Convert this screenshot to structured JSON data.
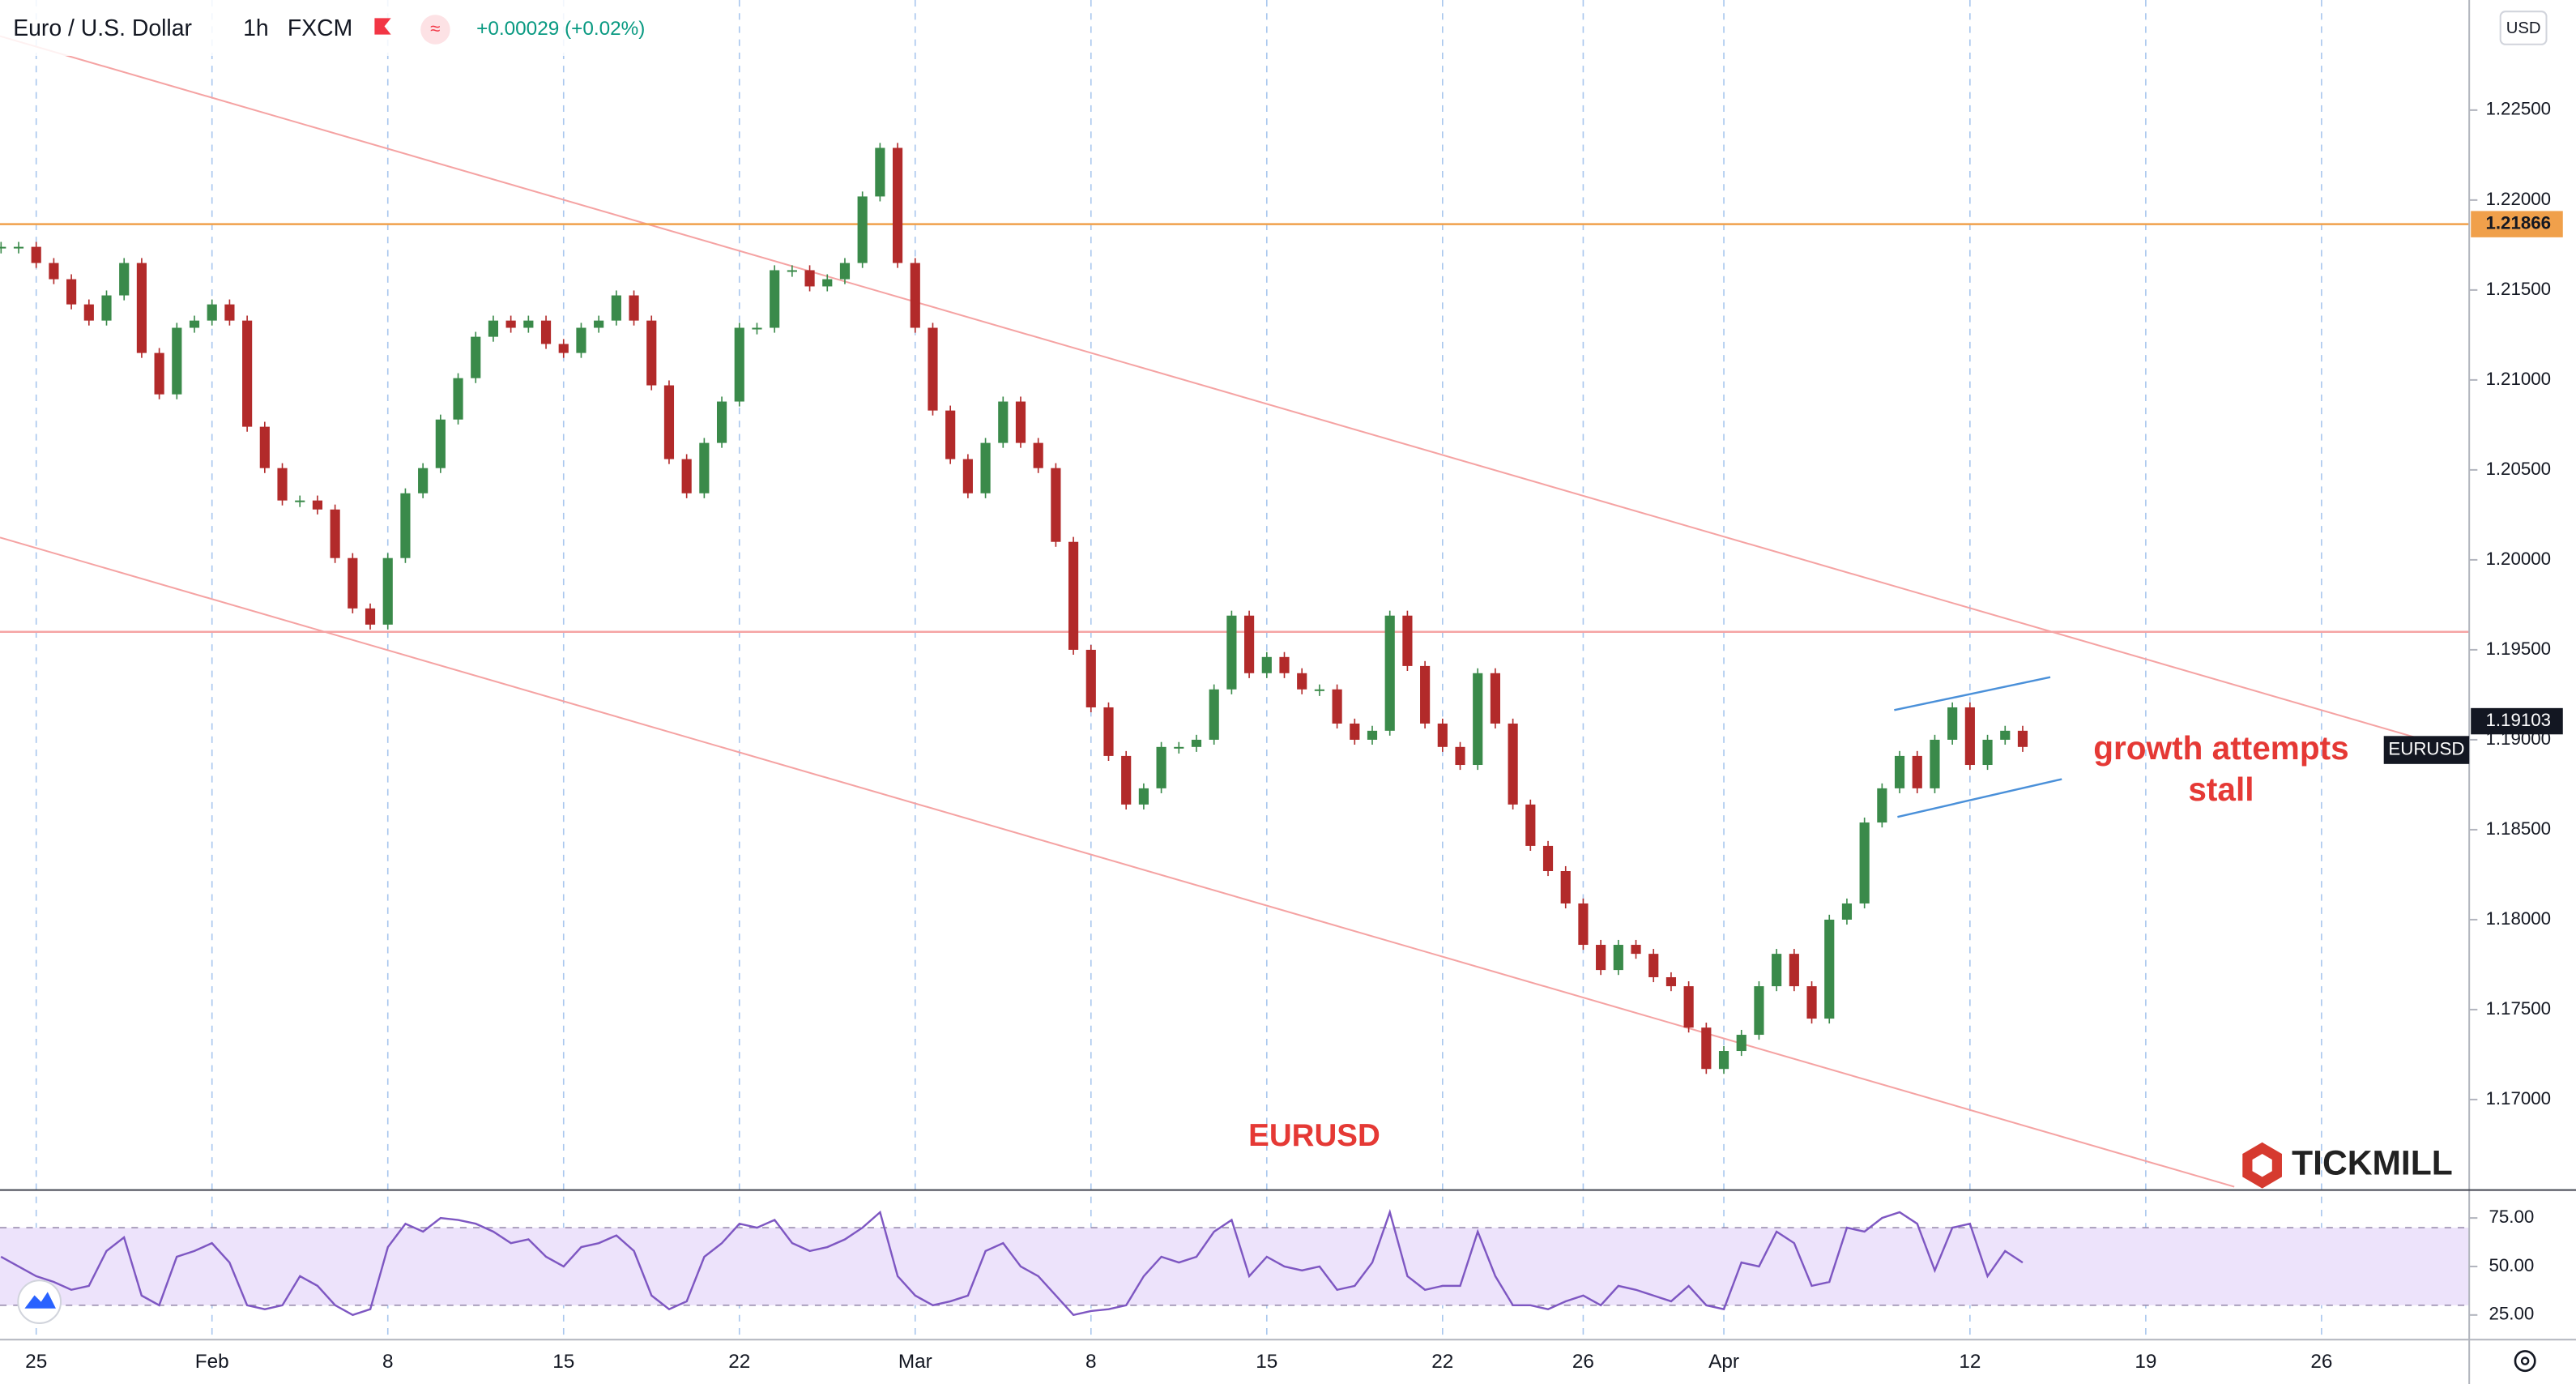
{
  "chart_data": {
    "type": "candlestick",
    "title": "Euro / U.S. Dollar",
    "interval": "1h",
    "source": "FXCM",
    "change": "+0.00029 (+0.02%)",
    "currency": "USD",
    "annotations": [
      "growth attempts stall",
      "EURUSD"
    ],
    "logo": "TICKMILL",
    "up_color": "#3a8a4a",
    "down_color": "#b22a2a",
    "xlim": [
      -1.03,
      69.2
    ],
    "xticks": [
      {
        "value": 0,
        "label": "25"
      },
      {
        "value": 5,
        "label": "Feb"
      },
      {
        "value": 10,
        "label": "8"
      },
      {
        "value": 15,
        "label": "15"
      },
      {
        "value": 20,
        "label": "22"
      },
      {
        "value": 25,
        "label": "Mar"
      },
      {
        "value": 30,
        "label": "8"
      },
      {
        "value": 35,
        "label": "15"
      },
      {
        "value": 40,
        "label": "22"
      },
      {
        "value": 44,
        "label": "26"
      },
      {
        "value": 48,
        "label": "Apr"
      },
      {
        "value": 55,
        "label": "12"
      },
      {
        "value": 60,
        "label": "19"
      },
      {
        "value": 65,
        "label": "26"
      }
    ],
    "ylim": [
      1.16497,
      1.23112
    ],
    "yticks": [
      {
        "value": 1.17,
        "label": "1.17000"
      },
      {
        "value": 1.175,
        "label": "1.17500"
      },
      {
        "value": 1.18,
        "label": "1.18000"
      },
      {
        "value": 1.185,
        "label": "1.18500"
      },
      {
        "value": 1.19,
        "label": "1.19000"
      },
      {
        "value": 1.195,
        "label": "1.19500"
      },
      {
        "value": 1.2,
        "label": "1.20000"
      },
      {
        "value": 1.205,
        "label": "1.20500"
      },
      {
        "value": 1.21,
        "label": "1.21000"
      },
      {
        "value": 1.215,
        "label": "1.21500"
      },
      {
        "value": 1.22,
        "label": "1.22000"
      },
      {
        "value": 1.225,
        "label": "1.22500"
      }
    ],
    "levels": [
      {
        "value": 1.21866,
        "color": "#f0a04b",
        "tagged": true
      },
      {
        "value": 1.196,
        "color": "#f5a3a3"
      }
    ],
    "last_price": 1.19103,
    "x": [
      -1,
      -0.5,
      0,
      0.5,
      1,
      1.5,
      2,
      2.5,
      3,
      3.5,
      4,
      4.5,
      5,
      5.5,
      6,
      6.5,
      7,
      7.5,
      8,
      8.5,
      9,
      9.5,
      10,
      10.5,
      11,
      11.5,
      12,
      12.5,
      13,
      13.5,
      14,
      14.5,
      15,
      15.5,
      16,
      16.5,
      17,
      17.5,
      18,
      18.5,
      19,
      19.5,
      20,
      20.5,
      21,
      21.5,
      22,
      22.5,
      23,
      23.5,
      24,
      24.5,
      25,
      25.5,
      26,
      26.5,
      27,
      27.5,
      28,
      28.5,
      29,
      29.5,
      30,
      30.5,
      31,
      31.5,
      32,
      32.5,
      33,
      33.5,
      34,
      34.5,
      35,
      35.5,
      36,
      36.5,
      37,
      37.5,
      38,
      38.5,
      39,
      39.5,
      40,
      40.5,
      41,
      41.5,
      42,
      42.5,
      43,
      43.5,
      44,
      44.5,
      45,
      45.5,
      46,
      46.5,
      47,
      47.5,
      48,
      48.5,
      49,
      49.5,
      50,
      50.5,
      51,
      51.5,
      52,
      52.5,
      53,
      53.5,
      54,
      54.5,
      55,
      55.5,
      56,
      56.5
    ],
    "series": [
      {
        "name": "EURUSD",
        "values": [
          1.2174,
          1.2174,
          1.2165,
          1.2156,
          1.2142,
          1.2133,
          1.2147,
          1.2165,
          1.2115,
          1.2092,
          1.2129,
          1.2133,
          1.2142,
          1.2133,
          1.2074,
          1.2051,
          1.2033,
          1.2033,
          1.2028,
          1.2001,
          1.1973,
          1.1964,
          1.2001,
          1.2037,
          1.2051,
          1.2078,
          1.2101,
          1.2124,
          1.2133,
          1.2129,
          1.2133,
          1.212,
          1.2115,
          1.2129,
          1.2133,
          1.2147,
          1.2133,
          1.2097,
          1.2056,
          1.2037,
          1.2065,
          1.2088,
          1.2129,
          1.2129,
          1.2161,
          1.2161,
          1.2152,
          1.2156,
          1.2165,
          1.2202,
          1.2229,
          1.2165,
          1.2129,
          1.2083,
          1.2056,
          1.2037,
          1.2065,
          1.2088,
          1.2065,
          1.2051,
          1.201,
          1.195,
          1.1918,
          1.1891,
          1.1864,
          1.1873,
          1.1896,
          1.1896,
          1.19,
          1.1928,
          1.1969,
          1.1937,
          1.1946,
          1.1937,
          1.1928,
          1.1928,
          1.1909,
          1.19,
          1.1905,
          1.1969,
          1.1941,
          1.1909,
          1.1896,
          1.1886,
          1.1937,
          1.1909,
          1.1864,
          1.1841,
          1.1827,
          1.1809,
          1.1786,
          1.1772,
          1.1786,
          1.1781,
          1.1768,
          1.1763,
          1.174,
          1.1717,
          1.1727,
          1.1736,
          1.1763,
          1.1781,
          1.1763,
          1.1745,
          1.18,
          1.1809,
          1.1854,
          1.1873,
          1.1891,
          1.1873,
          1.19,
          1.1918,
          1.1886,
          1.19,
          1.1905,
          1.1896
        ]
      }
    ],
    "indicator": {
      "type": "line",
      "color": "#7e57c2",
      "ylim": [
        12.3,
        89.4
      ],
      "band": [
        30,
        70
      ],
      "yticks": [
        {
          "value": 75,
          "label": "75.00"
        },
        {
          "value": 50,
          "label": "50.00"
        },
        {
          "value": 25,
          "label": "25.00"
        }
      ],
      "values": [
        55,
        50,
        45,
        42,
        38,
        40,
        58,
        65,
        35,
        30,
        55,
        58,
        62,
        52,
        30,
        28,
        30,
        45,
        40,
        30,
        25,
        28,
        60,
        72,
        68,
        75,
        74,
        72,
        68,
        62,
        64,
        55,
        50,
        60,
        62,
        66,
        58,
        35,
        28,
        32,
        55,
        62,
        72,
        70,
        74,
        62,
        58,
        60,
        64,
        70,
        78,
        45,
        35,
        30,
        32,
        35,
        58,
        62,
        50,
        45,
        35,
        25,
        27,
        28,
        30,
        45,
        55,
        52,
        55,
        68,
        74,
        45,
        55,
        50,
        48,
        50,
        38,
        40,
        52,
        78,
        45,
        38,
        40,
        40,
        68,
        45,
        30,
        30,
        28,
        32,
        35,
        30,
        40,
        38,
        35,
        32,
        40,
        30,
        28,
        52,
        50,
        68,
        62,
        40,
        42,
        70,
        68,
        75,
        78,
        72,
        48,
        70,
        72,
        45,
        58,
        52
      ]
    }
  }
}
